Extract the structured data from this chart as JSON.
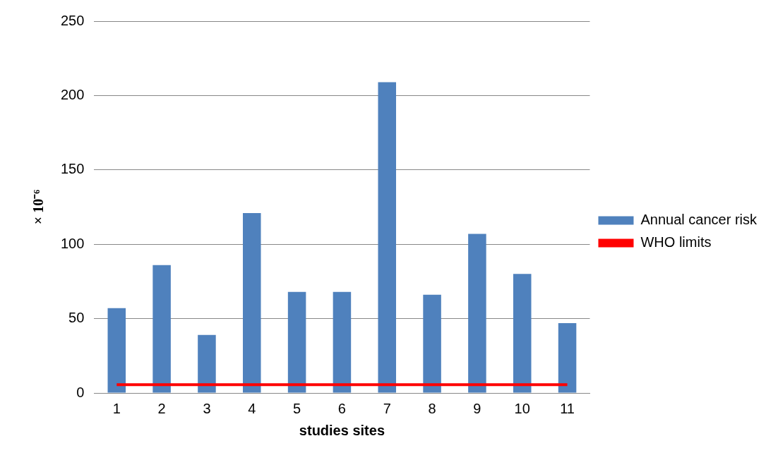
{
  "chart_data": {
    "type": "bar",
    "xlabel": "studies sites",
    "ylabel": "× 10⁻⁶",
    "categories": [
      "1",
      "2",
      "3",
      "4",
      "5",
      "6",
      "7",
      "8",
      "9",
      "10",
      "11"
    ],
    "series": [
      {
        "name": "Annual cancer risk",
        "color": "#4f81bd",
        "values": [
          57,
          86,
          39,
          121,
          68,
          68,
          209,
          66,
          107,
          80,
          47
        ]
      },
      {
        "name": "WHO limits",
        "type": "line",
        "color": "#ff0000",
        "values": [
          5.6,
          5.6,
          5.6,
          5.6,
          5.6,
          5.6,
          5.6,
          5.6,
          5.6,
          5.6,
          5.6
        ]
      }
    ],
    "ylim": [
      0,
      250
    ],
    "yticks": [
      0,
      50,
      100,
      150,
      200,
      250
    ],
    "grid": "y",
    "legend": "right",
    "marker": "none"
  }
}
